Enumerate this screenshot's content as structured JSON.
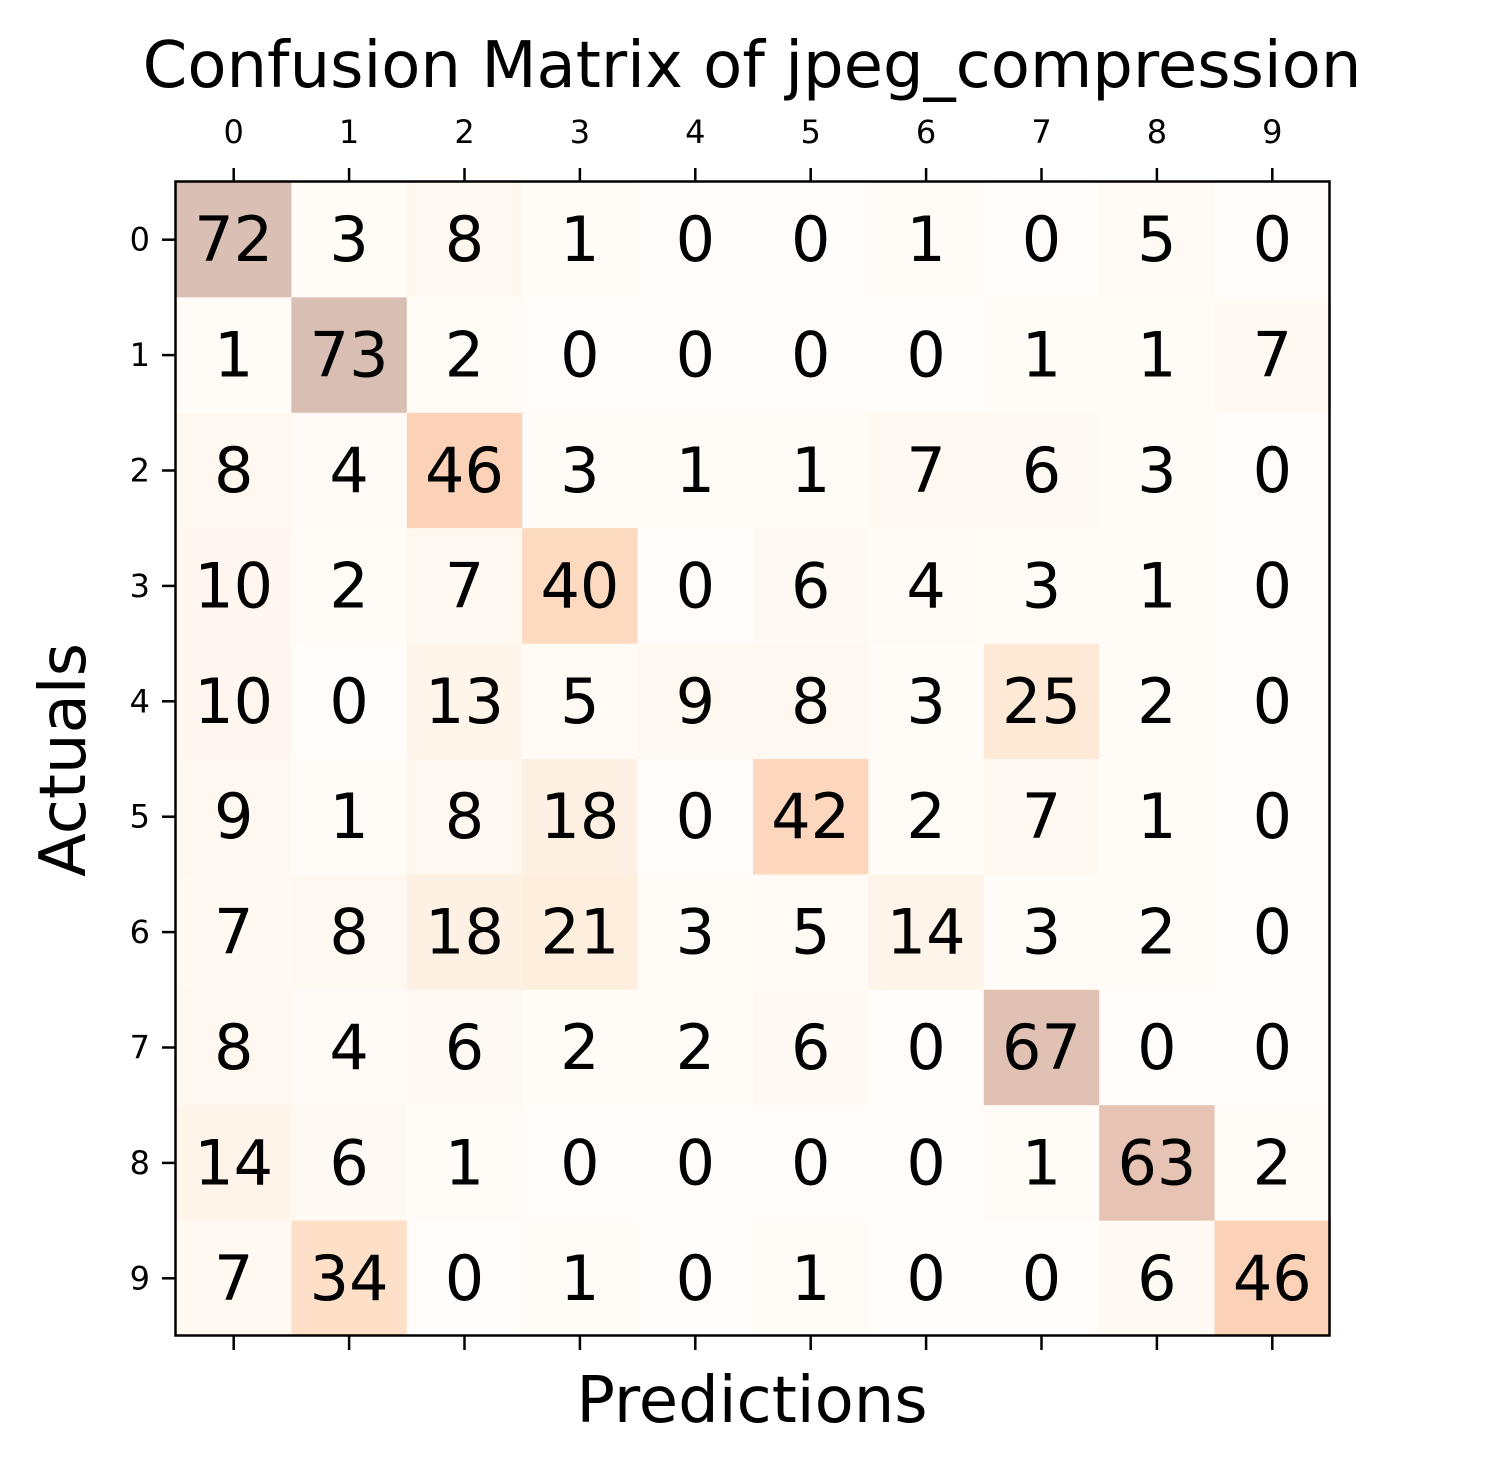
{
  "chart_data": {
    "type": "heatmap",
    "title": "Confusion Matrix of jpeg_compression",
    "xlabel": "Predictions",
    "ylabel": "Actuals",
    "x_ticks": [
      "0",
      "1",
      "2",
      "3",
      "4",
      "5",
      "6",
      "7",
      "8",
      "9"
    ],
    "y_ticks": [
      "0",
      "1",
      "2",
      "3",
      "4",
      "5",
      "6",
      "7",
      "8",
      "9"
    ],
    "x_tick_position": "top",
    "colormap": "Oranges",
    "alpha": 0.3,
    "color_range": [
      0,
      73
    ],
    "matrix": [
      [
        72,
        3,
        8,
        1,
        0,
        0,
        1,
        0,
        5,
        0
      ],
      [
        1,
        73,
        2,
        0,
        0,
        0,
        0,
        1,
        1,
        7
      ],
      [
        8,
        4,
        46,
        3,
        1,
        1,
        7,
        6,
        3,
        0
      ],
      [
        10,
        2,
        7,
        40,
        0,
        6,
        4,
        3,
        1,
        0
      ],
      [
        10,
        0,
        13,
        5,
        9,
        8,
        3,
        25,
        2,
        0
      ],
      [
        9,
        1,
        8,
        18,
        0,
        42,
        2,
        7,
        1,
        0
      ],
      [
        7,
        8,
        18,
        21,
        3,
        5,
        14,
        3,
        2,
        0
      ],
      [
        8,
        4,
        6,
        2,
        2,
        6,
        0,
        67,
        0,
        0
      ],
      [
        14,
        6,
        1,
        0,
        0,
        0,
        0,
        1,
        63,
        2
      ],
      [
        7,
        34,
        0,
        1,
        0,
        1,
        0,
        0,
        6,
        46
      ]
    ]
  }
}
